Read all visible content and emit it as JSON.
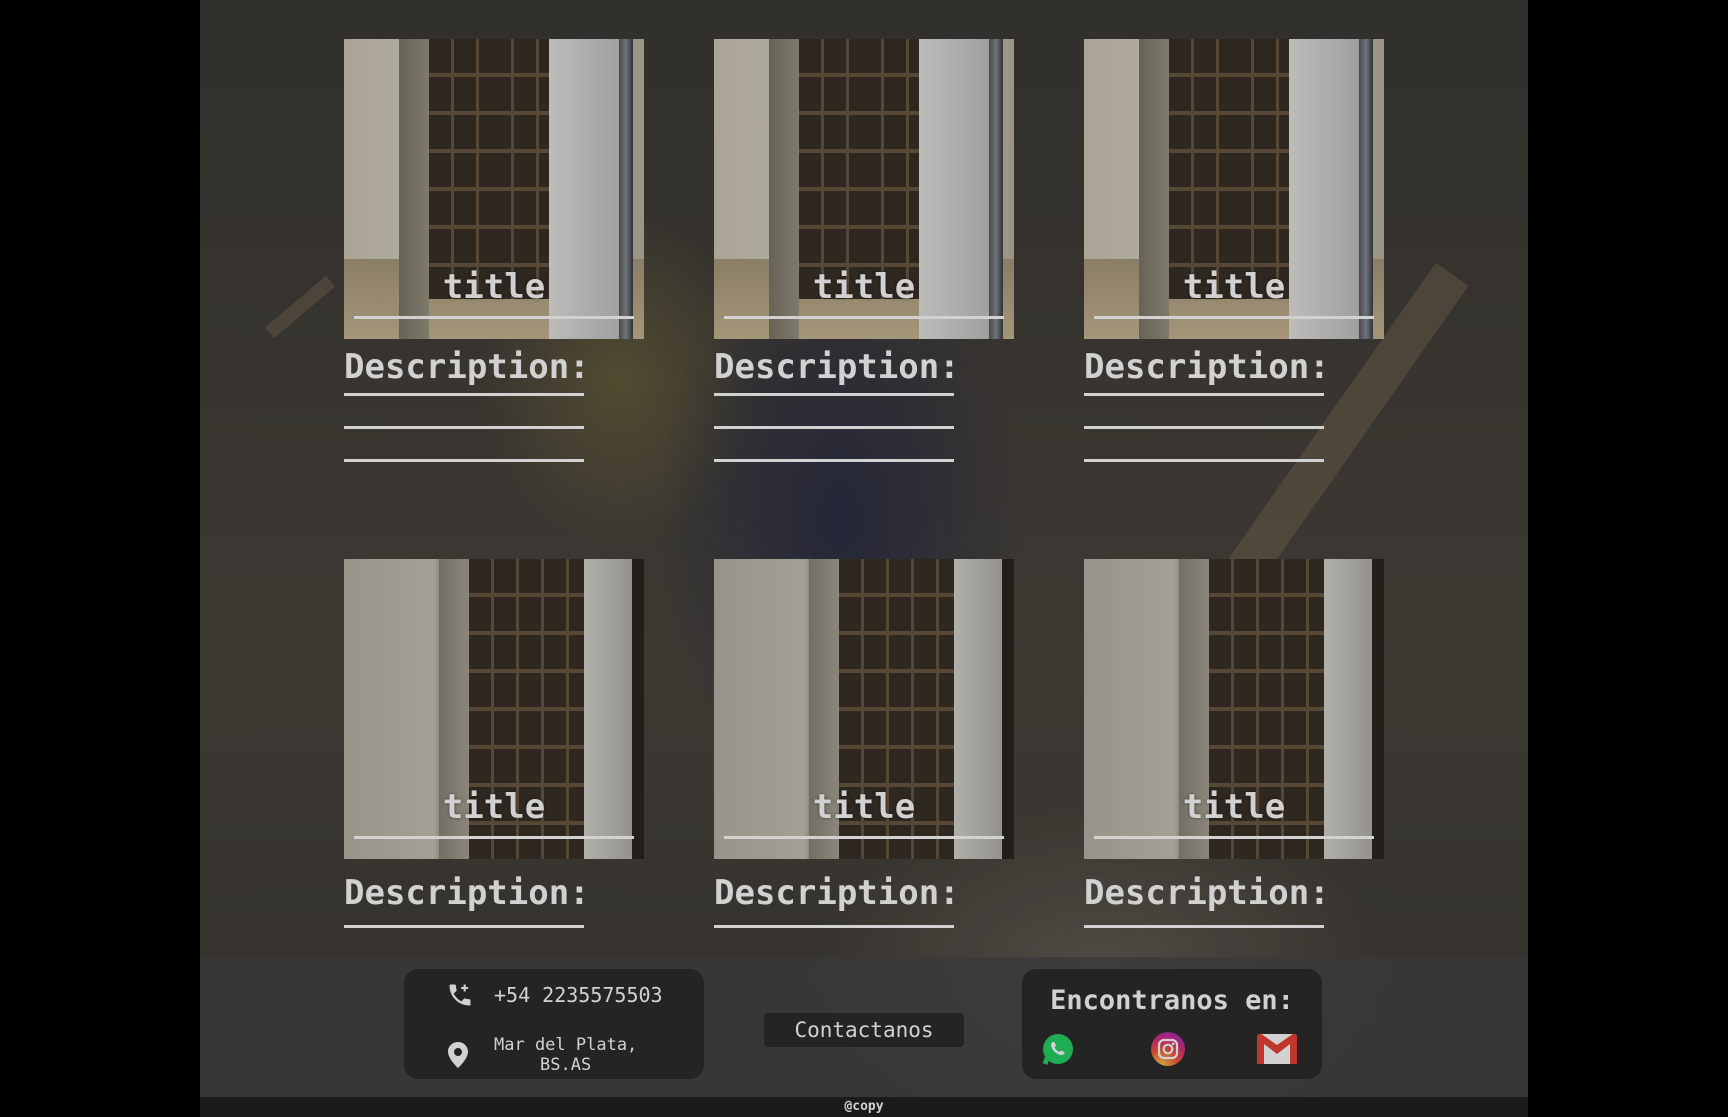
{
  "cards": [
    {
      "title": "title",
      "description_label": "Description:",
      "lines": 3,
      "variant": "a"
    },
    {
      "title": "title",
      "description_label": "Description:",
      "lines": 3,
      "variant": "a"
    },
    {
      "title": "title",
      "description_label": "Description:",
      "lines": 3,
      "variant": "a"
    },
    {
      "title": "title",
      "description_label": "Description:",
      "lines": 1,
      "variant": "b"
    },
    {
      "title": "title",
      "description_label": "Description:",
      "lines": 1,
      "variant": "b"
    },
    {
      "title": "title",
      "description_label": "Description:",
      "lines": 1,
      "variant": "b"
    }
  ],
  "footer": {
    "phone": "+54 2235575503",
    "address_line1": "Mar del Plata,",
    "address_line2": "BS.AS",
    "contact_button": "Contactanos",
    "social_title": "Encontranos en:",
    "social_icons": [
      "whatsapp-icon",
      "instagram-icon",
      "gmail-icon"
    ],
    "copyright": "@copy"
  },
  "colors": {
    "whatsapp": "#25d366",
    "gmail_red": "#ea4335"
  }
}
